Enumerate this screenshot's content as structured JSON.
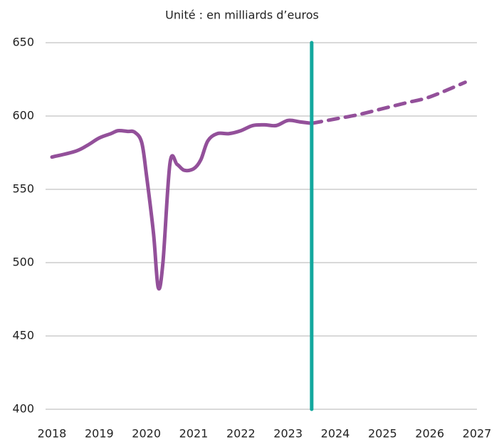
{
  "chart_data": {
    "type": "line",
    "title": "Unité : en milliards d’euros",
    "x": [
      2018,
      2018.5,
      2018.75,
      2019,
      2019.25,
      2019.4,
      2019.6,
      2019.75,
      2019.9,
      2020,
      2020.15,
      2020.25,
      2020.35,
      2020.5,
      2020.65,
      2020.8,
      2021,
      2021.15,
      2021.3,
      2021.5,
      2021.75,
      2022,
      2022.25,
      2022.5,
      2022.75,
      2023,
      2023.25,
      2023.5,
      2024,
      2024.5,
      2025,
      2025.5,
      2026,
      2026.75
    ],
    "series": [
      {
        "color": "#93509a",
        "dashed": false,
        "values": [
          572,
          576,
          580,
          585,
          588,
          590,
          589.5,
          589,
          582,
          560,
          520,
          483,
          500,
          568,
          567,
          563,
          564,
          570,
          583,
          588,
          588,
          590,
          593.5,
          594,
          593.5,
          597,
          596,
          595,
          null,
          null,
          null,
          null,
          null,
          null
        ]
      },
      {
        "color": "#93509a",
        "dashed": true,
        "values": [
          null,
          null,
          null,
          null,
          null,
          null,
          null,
          null,
          null,
          null,
          null,
          null,
          null,
          null,
          null,
          null,
          null,
          null,
          null,
          null,
          null,
          null,
          null,
          null,
          null,
          null,
          null,
          595,
          598,
          601,
          605,
          609,
          613,
          623
        ]
      }
    ],
    "vline": {
      "x": 2023.5,
      "color": "#13a89e"
    },
    "xlim": [
      2018,
      2027
    ],
    "xticks": [
      2018,
      2019,
      2020,
      2021,
      2022,
      2023,
      2024,
      2025,
      2026,
      2027
    ],
    "ylim": [
      400,
      650
    ],
    "yticks": [
      400,
      450,
      500,
      550,
      600,
      650
    ],
    "grid": true
  }
}
